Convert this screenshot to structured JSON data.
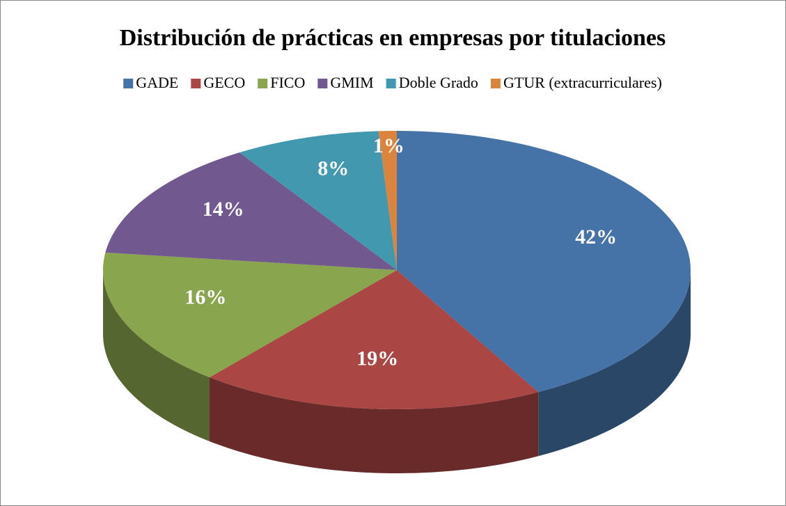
{
  "chart_data": {
    "type": "pie3d",
    "title": "Distribución de prácticas en empresas por titulaciones",
    "categories": [
      "GADE",
      "GECO",
      "FICO",
      "GMIM",
      "Doble Grado",
      "GTUR (extracurriculares)"
    ],
    "values": [
      42,
      19,
      16,
      14,
      8,
      1
    ],
    "value_labels": [
      "42%",
      "19%",
      "16%",
      "14%",
      "8%",
      "1%"
    ],
    "colors": [
      "#4572a7",
      "#aa4643",
      "#89a54e",
      "#71588f",
      "#4198af",
      "#db843d"
    ],
    "legend": "top"
  }
}
